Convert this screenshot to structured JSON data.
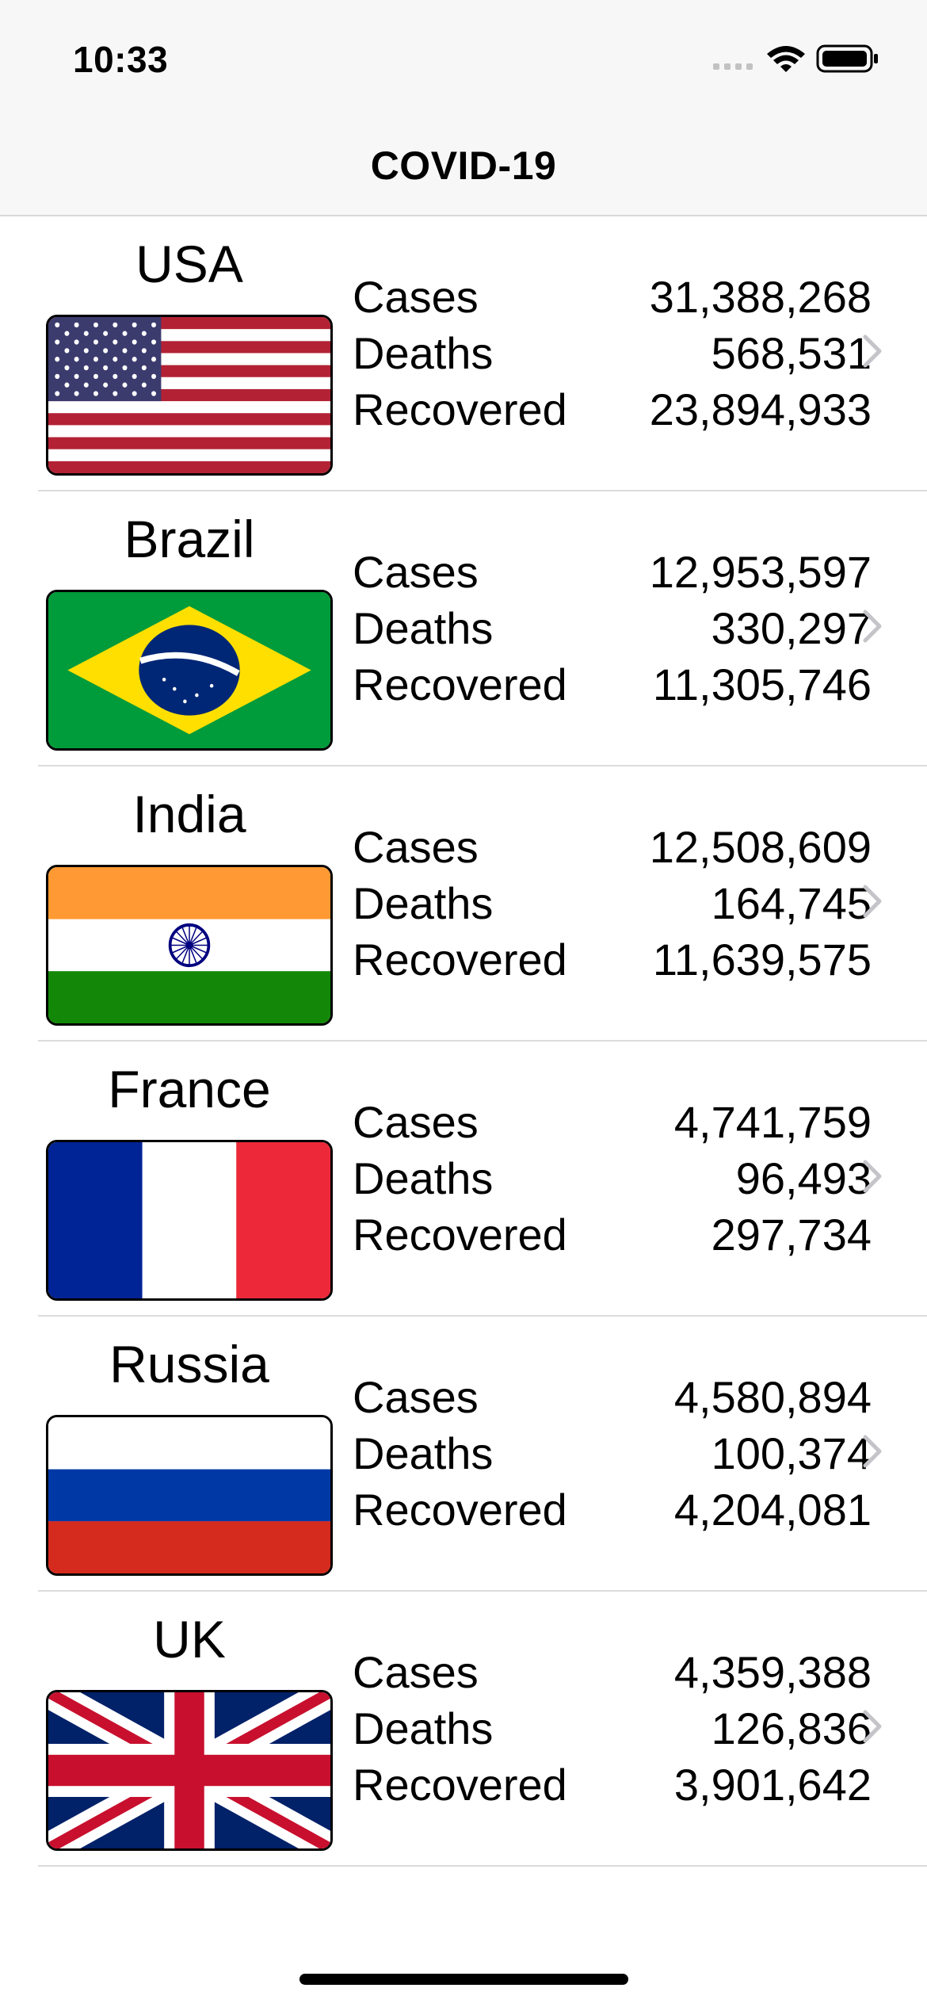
{
  "status_bar": {
    "time": "10:33"
  },
  "nav": {
    "title": "COVID-19"
  },
  "labels": {
    "cases": "Cases",
    "deaths": "Deaths",
    "recovered": "Recovered"
  },
  "countries": [
    {
      "name": "USA",
      "flag": "usa-flag",
      "cases": "31,388,268",
      "deaths": "568,531",
      "recovered": "23,894,933"
    },
    {
      "name": "Brazil",
      "flag": "brazil-flag",
      "cases": "12,953,597",
      "deaths": "330,297",
      "recovered": "11,305,746"
    },
    {
      "name": "India",
      "flag": "india-flag",
      "cases": "12,508,609",
      "deaths": "164,745",
      "recovered": "11,639,575"
    },
    {
      "name": "France",
      "flag": "france-flag",
      "cases": "4,741,759",
      "deaths": "96,493",
      "recovered": "297,734"
    },
    {
      "name": "Russia",
      "flag": "russia-flag",
      "cases": "4,580,894",
      "deaths": "100,374",
      "recovered": "4,204,081"
    },
    {
      "name": "UK",
      "flag": "uk-flag",
      "cases": "4,359,388",
      "deaths": "126,836",
      "recovered": "3,901,642"
    }
  ],
  "colors": {
    "chevron": "#c4c4c9",
    "separator": "#dcdcdc",
    "bar_background": "#f7f7f7"
  }
}
